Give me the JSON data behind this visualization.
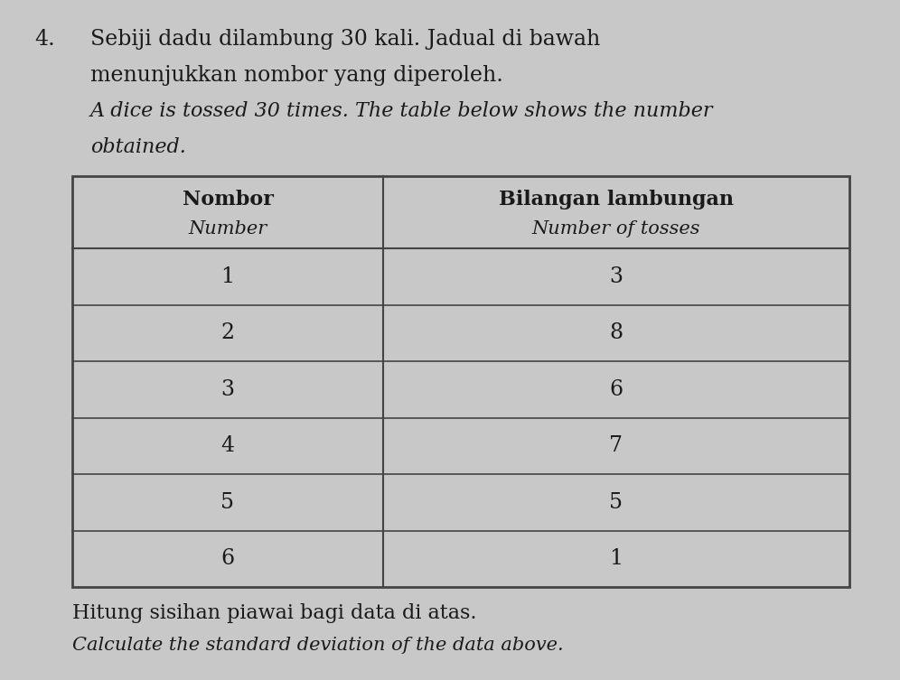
{
  "question_number": "4.",
  "title_line1": "Sebiji dadu dilambung 30 kali. Jadual di bawah",
  "title_line2": "menunjukkan nombor yang diperoleh.",
  "subtitle_italic1": "A dice is tossed 30 times. The table below shows the number",
  "subtitle_italic2": "obtained.",
  "col1_header_bold": "Nombor",
  "col1_header_italic": "Number",
  "col2_header_bold": "Bilangan lambungan",
  "col2_header_italic": "Number of tosses",
  "numbers": [
    1,
    2,
    3,
    4,
    5,
    6
  ],
  "tosses": [
    3,
    8,
    6,
    7,
    5,
    1
  ],
  "footer_line1": "Hitung sisihan piawai bagi data di atas.",
  "footer_line2_italic": "Calculate the standard deviation of the data above.",
  "text_color": "#1a1a1a",
  "page_bg": "#c8c8c8",
  "table_bg": "#c8c8c8",
  "line_color": "#444444",
  "title_fontsize": 17,
  "subtitle_fontsize": 16,
  "header_bold_fontsize": 16,
  "header_italic_fontsize": 15,
  "data_fontsize": 17,
  "footer_fontsize": 16,
  "footer_italic_fontsize": 15
}
